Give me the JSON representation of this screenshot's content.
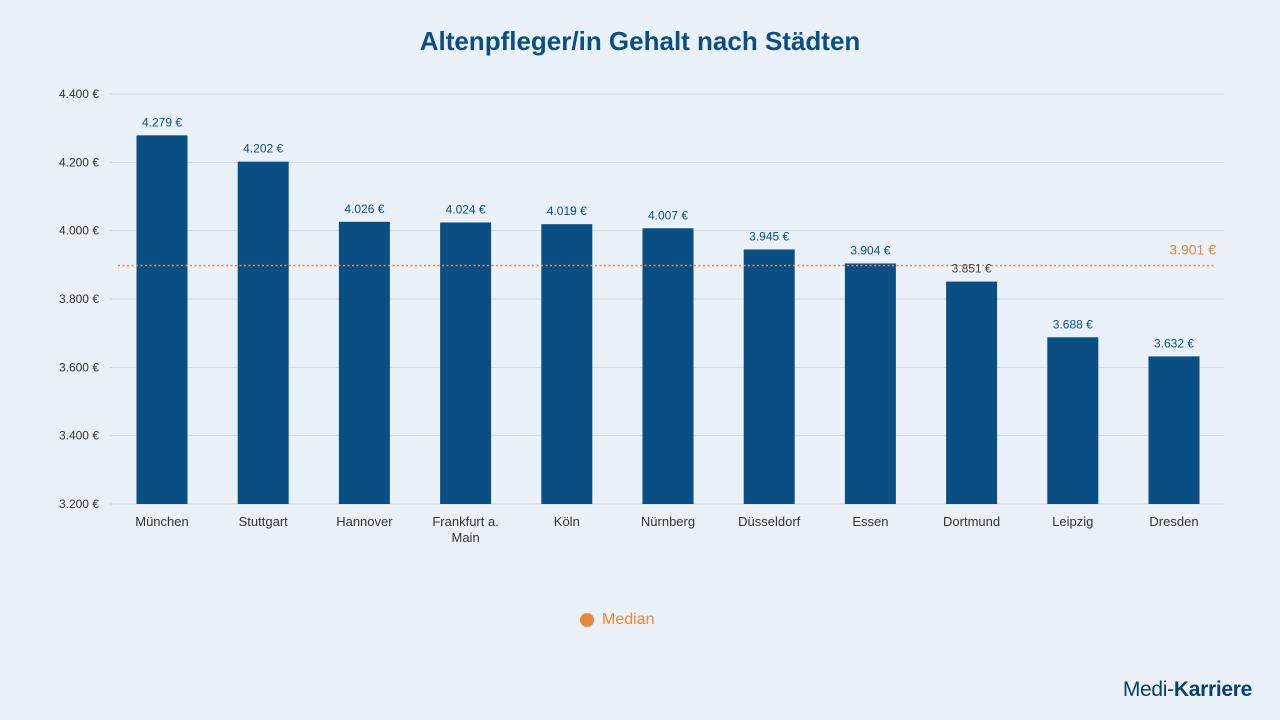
{
  "chart_data": {
    "type": "bar",
    "title": "Altenpfleger/in Gehalt nach Städten",
    "categories": [
      "München",
      "Stuttgart",
      "Hannover",
      "Frankfurt a. Main",
      "Köln",
      "Nürnberg",
      "Düsseldorf",
      "Essen",
      "Dortmund",
      "Leipzig",
      "Dresden"
    ],
    "category_lines": [
      [
        "München"
      ],
      [
        "Stuttgart"
      ],
      [
        "Hannover"
      ],
      [
        "Frankfurt a.",
        "Main"
      ],
      [
        "Köln"
      ],
      [
        "Nürnberg"
      ],
      [
        "Düsseldorf"
      ],
      [
        "Essen"
      ],
      [
        "Dortmund"
      ],
      [
        "Leipzig"
      ],
      [
        "Dresden"
      ]
    ],
    "values": [
      4279,
      4202,
      4026,
      4024,
      4019,
      4007,
      3945,
      3904,
      3851,
      3688,
      3632
    ],
    "value_labels": [
      "4.279 €",
      "4.202 €",
      "4.026 €",
      "4.024 €",
      "4.019 €",
      "4.007 €",
      "3.945 €",
      "3.904 €",
      "3.851 €",
      "3.688 €",
      "3.632 €"
    ],
    "ylim": [
      3200,
      4400
    ],
    "yticks": [
      3200,
      3400,
      3600,
      3800,
      4000,
      4200,
      4400
    ],
    "ytick_labels": [
      "3.200 €",
      "3.400 €",
      "3.600 €",
      "3.800 €",
      "4.000 €",
      "4.200 €",
      "4.400 €"
    ],
    "median": 3901,
    "median_label": "3.901 €",
    "legend": "Median",
    "xlabel": "",
    "ylabel": "",
    "grid": true
  },
  "colors": {
    "bar": "#0a4f84",
    "median": "#e8883a",
    "grid": "#d4d9de",
    "tick_text": "#333333",
    "value_text": "#0a4f84"
  },
  "brand": {
    "part1": "Medi-",
    "part2": "Karriere"
  }
}
